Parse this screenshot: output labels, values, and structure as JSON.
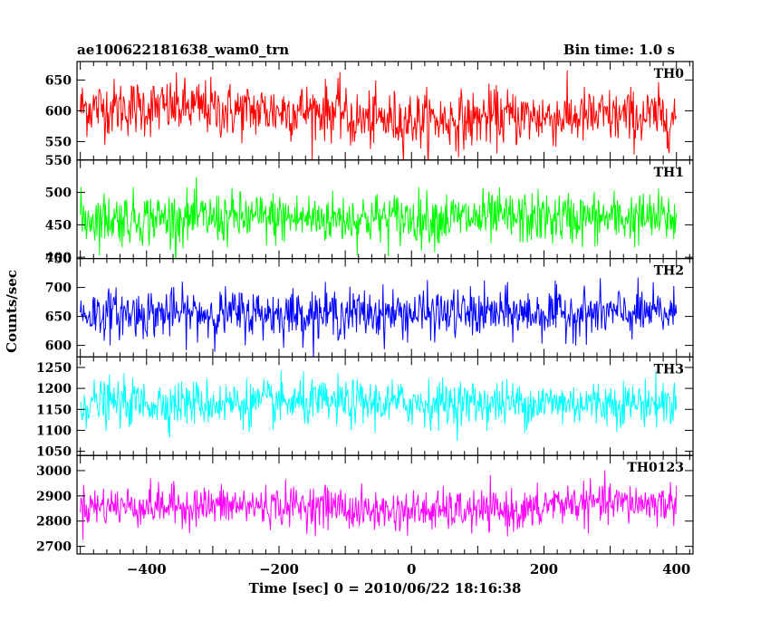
{
  "chart_data": {
    "type": "line",
    "title_left": "ae100622181638_wam0_trn",
    "title_right": "Bin time: 1.0 s",
    "xlabel": "Time [sec] 0 = 2010/06/22 18:16:38",
    "ylabel": "Counts/sec",
    "x_range": [
      -500,
      400
    ],
    "xlim": [
      -505,
      425
    ],
    "x_ticks": [
      -400,
      -200,
      0,
      200,
      400
    ],
    "x_tick_labels": [
      "−400",
      "−200",
      "0",
      "200",
      "400"
    ],
    "grid": false,
    "panels": [
      {
        "name": "TH0",
        "color": "#ff0000",
        "ylim": [
          520,
          680
        ],
        "y_ticks": [
          550,
          600,
          650
        ],
        "y_tick_labels": [
          "550",
          "600",
          "650"
        ],
        "mean": 600,
        "spread": 55,
        "segments": [
          {
            "x_end": -300,
            "mean": 605
          },
          {
            "x_end": -100,
            "mean": 600
          },
          {
            "x_end": 100,
            "mean": 585
          },
          {
            "x_end": 400,
            "mean": 590
          }
        ]
      },
      {
        "name": "TH1",
        "color": "#00ff00",
        "ylim": [
          398,
          550
        ],
        "y_ticks": [
          400,
          450,
          500,
          550
        ],
        "y_tick_labels": [
          "400",
          "450",
          "500",
          "550"
        ],
        "mean": 460,
        "spread": 48,
        "segments": [
          {
            "x_end": 400,
            "mean": 460
          }
        ]
      },
      {
        "name": "TH2",
        "color": "#0000ff",
        "ylim": [
          580,
          750
        ],
        "y_ticks": [
          600,
          650,
          700,
          750
        ],
        "y_tick_labels": [
          "600",
          "650",
          "700",
          "750"
        ],
        "mean": 655,
        "spread": 50,
        "segments": [
          {
            "x_end": 400,
            "mean": 655
          }
        ]
      },
      {
        "name": "TH3",
        "color": "#00ffff",
        "ylim": [
          1040,
          1275
        ],
        "y_ticks": [
          1050,
          1100,
          1150,
          1200,
          1250
        ],
        "y_tick_labels": [
          "1050",
          "1100",
          "1150",
          "1200",
          "1250"
        ],
        "mean": 1165,
        "spread": 65,
        "segments": [
          {
            "x_end": 400,
            "mean": 1165
          }
        ]
      },
      {
        "name": "TH0123",
        "color": "#ff00ff",
        "ylim": [
          2670,
          3060
        ],
        "y_ticks": [
          2700,
          2800,
          2900,
          3000
        ],
        "y_tick_labels": [
          "2700",
          "2800",
          "2900",
          "3000"
        ],
        "mean": 2860,
        "spread": 95,
        "segments": [
          {
            "x_end": -100,
            "mean": 2860
          },
          {
            "x_end": 200,
            "mean": 2840
          },
          {
            "x_end": 400,
            "mean": 2870
          }
        ]
      }
    ]
  }
}
